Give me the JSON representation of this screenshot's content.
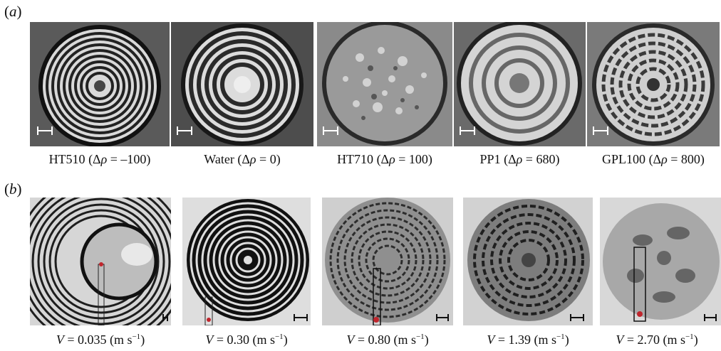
{
  "panels": {
    "a": {
      "label_open": "(",
      "label_letter": "a",
      "label_close": ")"
    },
    "b": {
      "label_open": "(",
      "label_letter": "b",
      "label_close": ")"
    }
  },
  "row_a": {
    "captions": [
      {
        "name": "HT510",
        "open": " (Δ",
        "rho": "ρ",
        "rest": " = –100)"
      },
      {
        "name": "Water",
        "open": " (Δ",
        "rho": "ρ",
        "rest": " = 0)"
      },
      {
        "name": "HT710",
        "open": " (Δ",
        "rho": "ρ",
        "rest": " = 100)"
      },
      {
        "name": "PP1",
        "open": " (Δ",
        "rho": "ρ",
        "rest": " = 680)"
      },
      {
        "name": "GPL100",
        "open": " (Δ",
        "rho": "ρ",
        "rest": " = 800)"
      }
    ]
  },
  "row_b": {
    "captions": [
      {
        "var": "V",
        "value": " = 0.035 (m s",
        "exp": "−1",
        "close": ")"
      },
      {
        "var": "V",
        "value": " = 0.30 (m s",
        "exp": "−1",
        "close": ")"
      },
      {
        "var": "V",
        "value": " = 0.80 (m s",
        "exp": "−1",
        "close": ")"
      },
      {
        "var": "V",
        "value": " = 1.39 (m s",
        "exp": "−1",
        "close": ")"
      },
      {
        "var": "V",
        "value": " = 2.70 (m s",
        "exp": "−1",
        "close": ")"
      }
    ]
  },
  "colors": {
    "marker": "#c0262d",
    "ring_dark": "#1a1a1a",
    "ring_light": "#e8e8e8"
  }
}
